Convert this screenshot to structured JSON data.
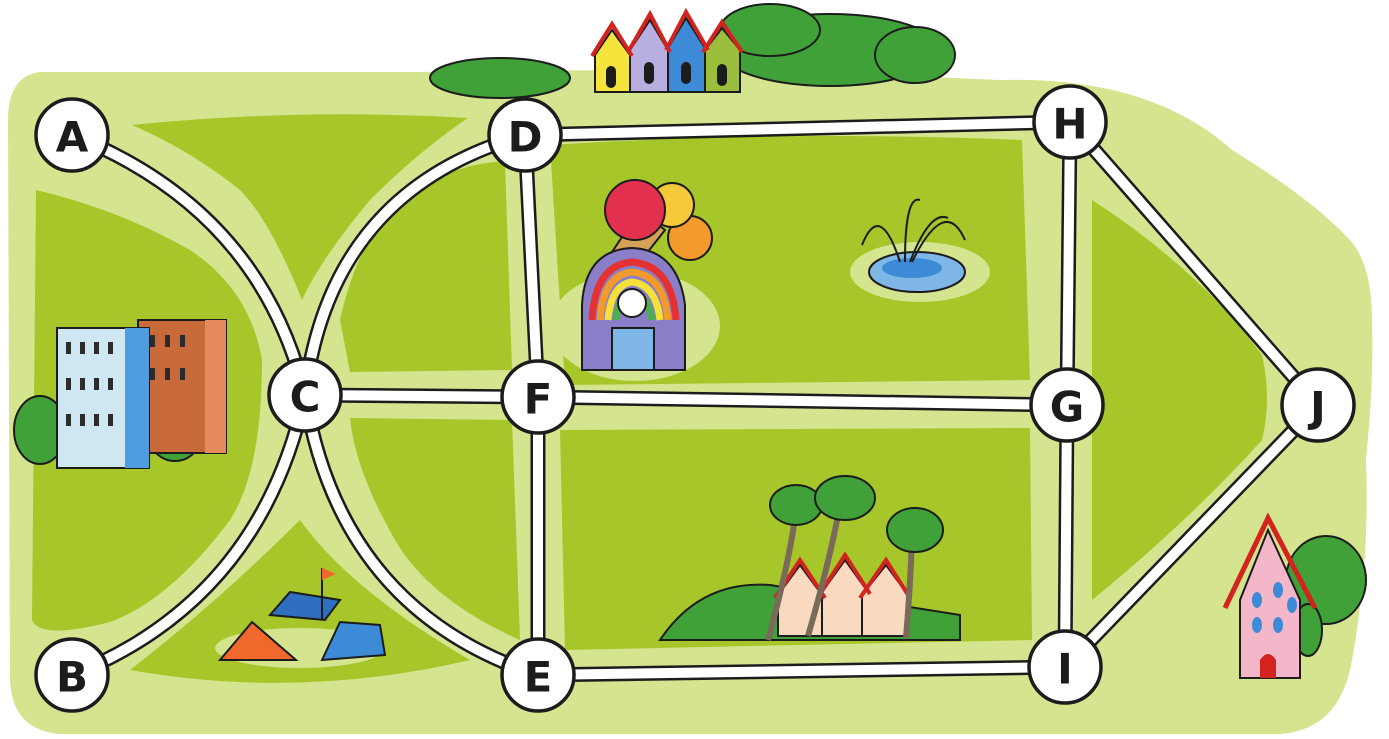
{
  "map": {
    "colors": {
      "outer_grass": "#d5e48f",
      "inner_grass": "#a6c62a",
      "road": "#ffffff",
      "road_outline": "#1c1c1c",
      "node_fill": "#ffffff",
      "node_text": "#1c1c1c"
    },
    "nodes": [
      {
        "id": "A",
        "label": "A"
      },
      {
        "id": "B",
        "label": "B"
      },
      {
        "id": "C",
        "label": "C"
      },
      {
        "id": "D",
        "label": "D"
      },
      {
        "id": "E",
        "label": "E"
      },
      {
        "id": "F",
        "label": "F"
      },
      {
        "id": "G",
        "label": "G"
      },
      {
        "id": "H",
        "label": "H"
      },
      {
        "id": "I",
        "label": "I"
      },
      {
        "id": "J",
        "label": "J"
      }
    ],
    "edges": [
      [
        "A",
        "C"
      ],
      [
        "B",
        "C"
      ],
      [
        "C",
        "D"
      ],
      [
        "C",
        "E"
      ],
      [
        "C",
        "F"
      ],
      [
        "D",
        "F"
      ],
      [
        "F",
        "E"
      ],
      [
        "D",
        "H"
      ],
      [
        "F",
        "G"
      ],
      [
        "E",
        "I"
      ],
      [
        "H",
        "G"
      ],
      [
        "G",
        "I"
      ],
      [
        "H",
        "J"
      ],
      [
        "I",
        "J"
      ]
    ],
    "landmarks": [
      {
        "name": "apartment-buildings",
        "icon": "apartment-buildings-icon"
      },
      {
        "name": "colorful-row-houses",
        "icon": "row-houses-icon"
      },
      {
        "name": "ice-cream-shop",
        "icon": "ice-cream-shop-icon"
      },
      {
        "name": "fountain",
        "icon": "fountain-icon"
      },
      {
        "name": "campsite-tents",
        "icon": "tents-icon"
      },
      {
        "name": "village-with-trees",
        "icon": "village-icon"
      },
      {
        "name": "pink-house",
        "icon": "pink-house-icon"
      }
    ]
  }
}
